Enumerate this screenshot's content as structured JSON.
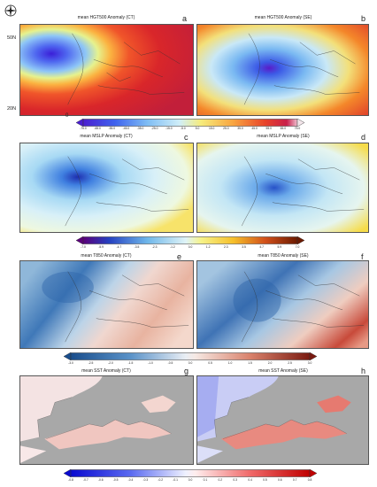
{
  "panels": [
    {
      "id": "a",
      "title": "mean HGT500 Anomaly (CT)",
      "letter": "a"
    },
    {
      "id": "b",
      "title": "mean HGT500 Anomaly (SE)",
      "letter": "b"
    },
    {
      "id": "c",
      "title": "mean MSLP Anomaly (CT)",
      "letter": "c"
    },
    {
      "id": "d",
      "title": "mean MSLP Anomaly (SE)",
      "letter": "d"
    },
    {
      "id": "e",
      "title": "mean T850 Anomaly (CT)",
      "letter": "e"
    },
    {
      "id": "f",
      "title": "mean T850 Anomaly (SE)",
      "letter": "f"
    },
    {
      "id": "g",
      "title": "mean SST Anomaly (CT)",
      "letter": "g"
    },
    {
      "id": "h",
      "title": "mean SST Anomaly (SE)",
      "letter": "h"
    }
  ],
  "lat_labels": {
    "north": "50N",
    "south": "20N"
  },
  "zero_label": "0",
  "colorbars": {
    "hgt500": {
      "left_color": "#3a1fd0",
      "right_color": "#ffffff",
      "ticks": [
        "-75.0",
        "-65.0",
        "-55.0",
        "-45.0",
        "-35.0",
        "-25.0",
        "-15.0",
        "-5.0",
        "5.0",
        "15.0",
        "25.0",
        "35.0",
        "45.0",
        "55.0",
        "65.0",
        "75.0"
      ]
    },
    "mslp": {
      "left_color": "#5a007a",
      "right_color": "#6b1a00",
      "ticks": [
        "-7.0",
        "-5.9",
        "-4.7",
        "-3.5",
        "-2.3",
        "-1.2",
        "0.0",
        "1.2",
        "2.3",
        "3.5",
        "4.7",
        "5.9",
        "7.0"
      ]
    },
    "t850": {
      "left_color": "#1a4e8c",
      "right_color": "#7a1a10",
      "ticks": [
        "-3.0",
        "-2.5",
        "-2.0",
        "-1.5",
        "-1.0",
        "-0.5",
        "0.0",
        "0.5",
        "1.0",
        "1.5",
        "2.0",
        "2.5",
        "3.0"
      ]
    },
    "sst": {
      "left_color": "#0a0ad0",
      "right_color": "#c00000",
      "ticks": [
        "-0.8",
        "-0.7",
        "-0.6",
        "-0.5",
        "-0.4",
        "-0.3",
        "-0.2",
        "-0.1",
        "0.0",
        "0.1",
        "0.2",
        "0.3",
        "0.4",
        "0.5",
        "0.6",
        "0.7",
        "0.8"
      ]
    }
  }
}
